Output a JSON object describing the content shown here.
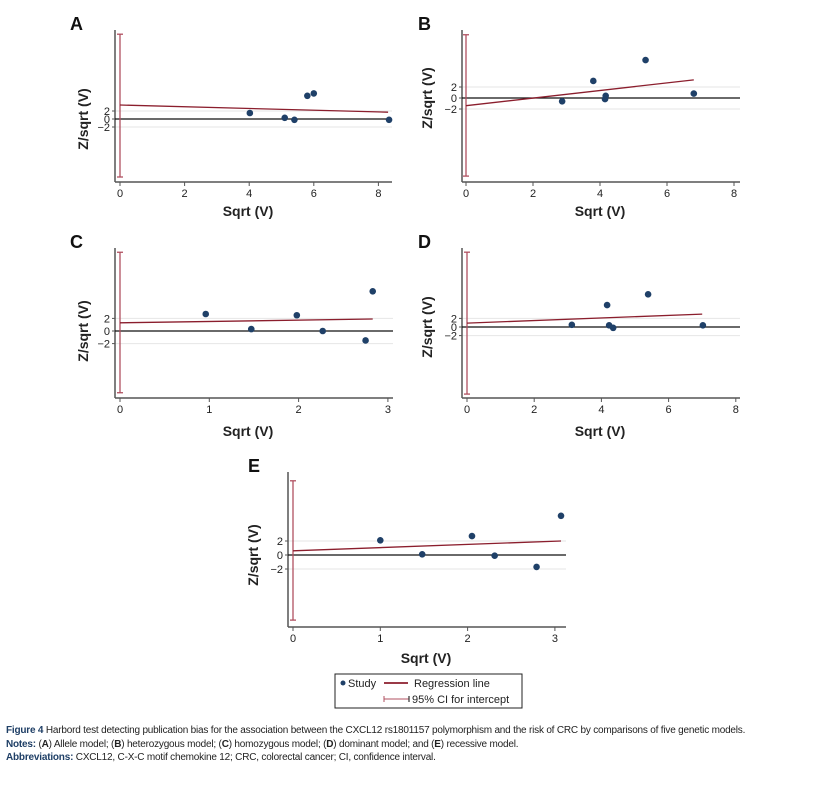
{
  "chart_data": [
    {
      "panel": "A",
      "type": "scatter",
      "title": "",
      "xlabel": "Sqrt (V)",
      "ylabel": "Z/sqrt (V)",
      "xlim": [
        0,
        8.4
      ],
      "ylim": [
        -15.5,
        22
      ],
      "xticks": [
        "0",
        "2",
        "4",
        "6",
        "8"
      ],
      "yticks": [
        "2",
        "0",
        "-2"
      ],
      "points": [
        {
          "x": 4.02,
          "y": 1.5
        },
        {
          "x": 5.1,
          "y": 0.3
        },
        {
          "x": 5.4,
          "y": -0.2
        },
        {
          "x": 5.8,
          "y": 5.8
        },
        {
          "x": 6.0,
          "y": 6.4
        },
        {
          "x": 8.33,
          "y": -0.2
        }
      ],
      "regression_line": {
        "x_start": 0,
        "y_start": 3.5,
        "x_end": 8.3,
        "y_end": 1.7
      },
      "ci_intercept": [
        -14.5,
        21.2
      ]
    },
    {
      "panel": "B",
      "type": "scatter",
      "title": "",
      "xlabel": "Sqrt (V)",
      "ylabel": "Z/sqrt (V)",
      "xlim": [
        0,
        8.1
      ],
      "ylim": [
        -15,
        12.5
      ],
      "xticks": [
        "0",
        "2",
        "4",
        "6",
        "8"
      ],
      "yticks": [
        "2",
        "0",
        "-2"
      ],
      "points": [
        {
          "x": 2.87,
          "y": -0.6
        },
        {
          "x": 3.8,
          "y": 3.1
        },
        {
          "x": 4.15,
          "y": -0.2
        },
        {
          "x": 4.17,
          "y": 0.4
        },
        {
          "x": 5.36,
          "y": 6.9
        },
        {
          "x": 6.8,
          "y": 0.8
        }
      ],
      "regression_line": {
        "x_start": 0,
        "y_start": -1.4,
        "x_end": 6.8,
        "y_end": 3.3
      },
      "ci_intercept": [
        -14.2,
        11.5
      ]
    },
    {
      "panel": "C",
      "type": "scatter",
      "title": "",
      "xlabel": "Sqrt (V)",
      "ylabel": "Z/sqrt (V)",
      "xlim": [
        0,
        3.05
      ],
      "ylim": [
        -10.5,
        13.5
      ],
      "xticks": [
        "0",
        "1",
        "2",
        "3"
      ],
      "yticks": [
        "2",
        "0",
        "-2"
      ],
      "points": [
        {
          "x": 0.96,
          "y": 2.7
        },
        {
          "x": 1.47,
          "y": 0.3
        },
        {
          "x": 1.98,
          "y": 2.5
        },
        {
          "x": 2.27,
          "y": 0.0
        },
        {
          "x": 2.75,
          "y": -1.5
        },
        {
          "x": 2.83,
          "y": 6.3
        }
      ],
      "regression_line": {
        "x_start": 0,
        "y_start": 1.3,
        "x_end": 2.83,
        "y_end": 1.9
      },
      "ci_intercept": [
        -9.8,
        12.5
      ]
    },
    {
      "panel": "D",
      "type": "scatter",
      "title": "",
      "xlabel": "Sqrt (V)",
      "ylabel": "Z/sqrt (V)",
      "xlim": [
        0,
        8.1
      ],
      "ylim": [
        -16.5,
        18.5
      ],
      "xticks": [
        "0",
        "2",
        "4",
        "6",
        "8"
      ],
      "yticks": [
        "2",
        "0",
        "-2"
      ],
      "points": [
        {
          "x": 3.12,
          "y": 0.5
        },
        {
          "x": 4.17,
          "y": 5.1
        },
        {
          "x": 4.23,
          "y": 0.4
        },
        {
          "x": 4.35,
          "y": -0.2
        },
        {
          "x": 5.39,
          "y": 7.6
        },
        {
          "x": 7.02,
          "y": 0.4
        }
      ],
      "regression_line": {
        "x_start": 0,
        "y_start": 0.9,
        "x_end": 7.0,
        "y_end": 3.0
      },
      "ci_intercept": [
        -15.6,
        17.4
      ]
    },
    {
      "panel": "E",
      "type": "scatter",
      "title": "",
      "xlabel": "Sqrt (V)",
      "ylabel": "Z/sqrt (V)",
      "xlim": [
        0,
        3.12
      ],
      "ylim": [
        -10,
        11.5
      ],
      "xticks": [
        "0",
        "1",
        "2",
        "3"
      ],
      "yticks": [
        "2",
        "0",
        "-2"
      ],
      "points": [
        {
          "x": 1.0,
          "y": 2.1
        },
        {
          "x": 1.48,
          "y": 0.1
        },
        {
          "x": 2.05,
          "y": 2.7
        },
        {
          "x": 2.31,
          "y": -0.1
        },
        {
          "x": 2.79,
          "y": -1.7
        },
        {
          "x": 3.07,
          "y": 5.6
        }
      ],
      "regression_line": {
        "x_start": 0,
        "y_start": 0.6,
        "x_end": 3.07,
        "y_end": 2.0
      },
      "ci_intercept": [
        -9.3,
        10.6
      ]
    }
  ],
  "legend": {
    "placement": "bottom-center",
    "items": [
      {
        "label": "Study",
        "type": "marker"
      },
      {
        "label": "Regression line",
        "type": "line"
      },
      {
        "label": "95% CI for intercept",
        "type": "ci"
      }
    ]
  },
  "colors": {
    "point": "#1f4068",
    "regression": "#8b1e2d",
    "ci": "#b05060",
    "axis": "#555555",
    "zero_line": "#111111",
    "grid": "#e6e6e6",
    "caption_label": "#1f3f66"
  },
  "caption": {
    "figure_label": "Figure 4",
    "figure_text": " Harbord test detecting publication bias for the association between the CXCL12 rs1801157 polymorphism and the risk of CRC by comparisons of five genetic models.",
    "notes_label": "Notes:",
    "notes_parts": [
      " (",
      "A",
      ") Allele model; (",
      "B",
      ") heterozygous model; (",
      "C",
      ") homozygous model; (",
      "D",
      ") dominant model; and (",
      "E",
      ") recessive model."
    ],
    "abbrev_label": "Abbreviations:",
    "abbrev_text": " CXCL12, C-X-C motif chemokine 12; CRC, colorectal cancer; CI, confidence interval."
  }
}
